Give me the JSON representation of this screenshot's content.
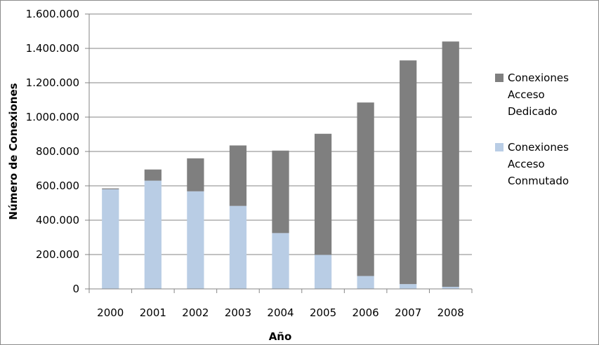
{
  "chart_data": {
    "type": "bar",
    "stacked": true,
    "categories": [
      "2000",
      "2001",
      "2002",
      "2003",
      "2004",
      "2005",
      "2006",
      "2007",
      "2008"
    ],
    "series": [
      {
        "name": "Conexiones Acceso Conmutado",
        "name_lines": [
          "Conexiones",
          "Acceso",
          "Conmutado"
        ],
        "color": "#b9cde5",
        "values": [
          580000,
          630000,
          568000,
          483000,
          325000,
          198000,
          75000,
          28000,
          12000
        ]
      },
      {
        "name": "Conexiones Acceso Dedicado",
        "name_lines": [
          "Conexiones",
          "Acceso",
          "Dedicado"
        ],
        "color": "#7f7f7f",
        "values": [
          5000,
          65000,
          192000,
          352000,
          480000,
          705000,
          1010000,
          1302000,
          1428000
        ]
      }
    ],
    "title": "",
    "xlabel": "Año",
    "ylabel": "Número de Conexiones",
    "ylim": [
      0,
      1600000
    ],
    "ytick_values": [
      0,
      200000,
      400000,
      600000,
      800000,
      1000000,
      1200000,
      1400000,
      1600000
    ],
    "ytick_labels": [
      "0",
      "200.000",
      "400.000",
      "600.000",
      "800.000",
      "1.000.000",
      "1.200.000",
      "1.400.000",
      "1.600.000"
    ],
    "grid": true,
    "legend_position": "right",
    "legend_order": [
      1,
      0
    ]
  }
}
